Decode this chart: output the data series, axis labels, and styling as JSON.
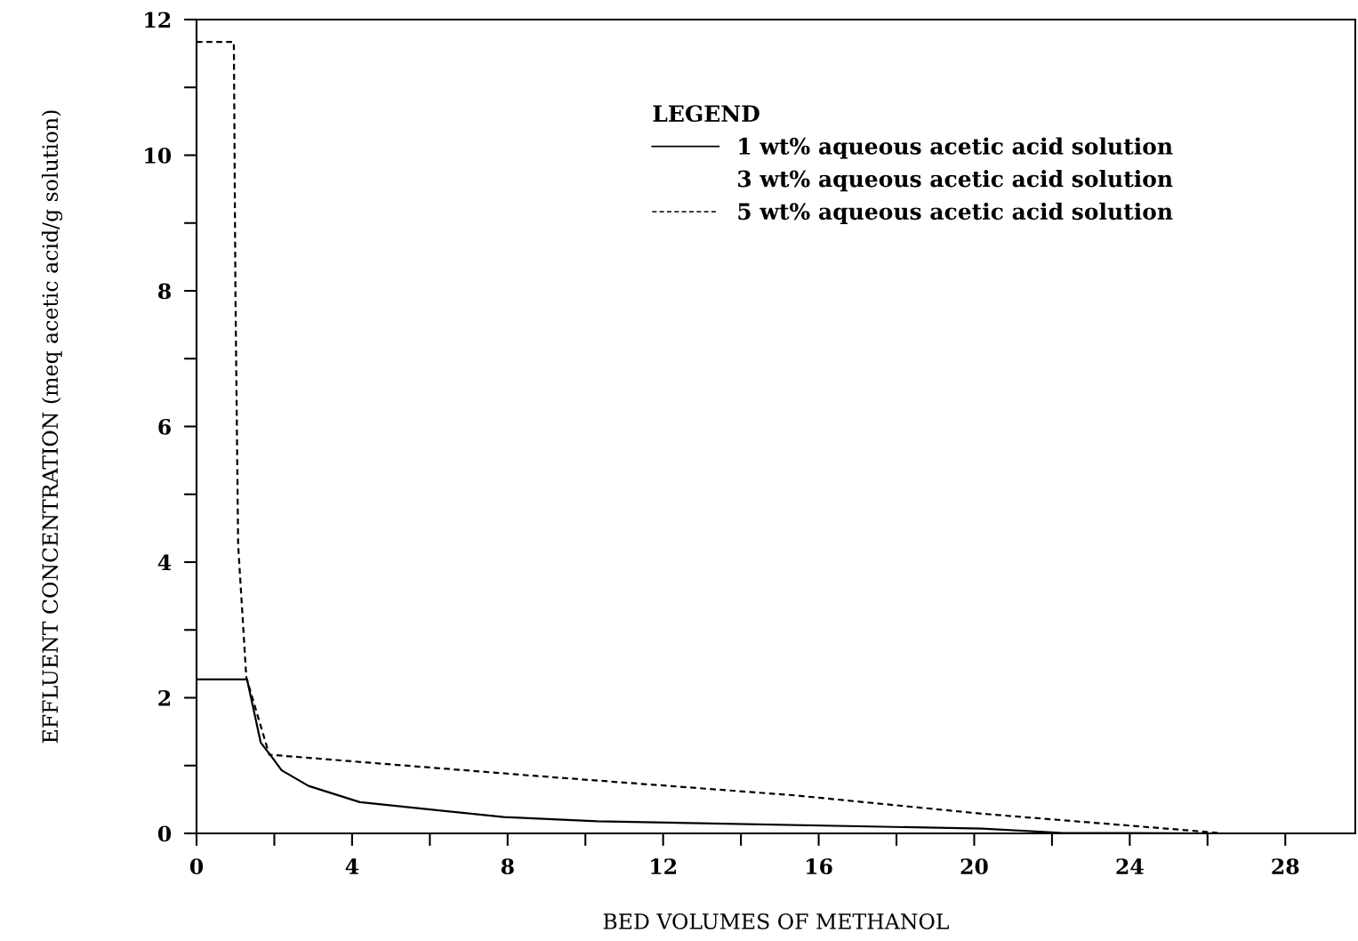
{
  "chart_data": {
    "type": "line",
    "xlabel": "BED VOLUMES OF METHANOL",
    "ylabel": "EFFLUENT CONCENTRATION (meq acetic acid/g solution)",
    "legend_title": "LEGEND",
    "legend": "top right",
    "grid": false,
    "marker": "none",
    "xlim": [
      0,
      29.8
    ],
    "ylim": [
      0,
      12
    ],
    "xticks": [
      0,
      {
        "value": 2,
        "label": null
      },
      4,
      {
        "value": 6,
        "label": null
      },
      8,
      {
        "value": 10,
        "label": null
      },
      12,
      {
        "value": 14,
        "label": null
      },
      16,
      {
        "value": 18,
        "label": null
      },
      20,
      {
        "value": 22,
        "label": null
      },
      24,
      {
        "value": 26,
        "label": null
      },
      28
    ],
    "yticks": [
      0,
      {
        "value": 1,
        "label": null
      },
      2,
      {
        "value": 3,
        "label": null
      },
      4,
      {
        "value": 5,
        "label": null
      },
      6,
      {
        "value": 7,
        "label": null
      },
      8,
      {
        "value": 9,
        "label": null
      },
      10,
      {
        "value": 11,
        "label": null
      },
      12
    ],
    "series": [
      {
        "name": "1 wt% aqueous acetic acid solution",
        "color": "#000000",
        "line_style": "solid",
        "x": [
          0,
          1.3,
          1.65,
          1.92,
          2.19,
          2.88,
          4.2,
          7.9,
          10.3,
          20.2,
          22.2,
          26.1
        ],
        "values": [
          2.27,
          2.27,
          1.34,
          1.14,
          0.93,
          0.7,
          0.46,
          0.24,
          0.18,
          0.07,
          0.01,
          0
        ]
      },
      {
        "name": "3 wt% aqueous acetic acid solution"
      },
      {
        "name": "5 wt% aqueous acetic acid solution",
        "color": "#000000",
        "line_style": "dotted",
        "x": [
          0,
          0.96,
          1.0,
          1.07,
          1.28,
          1.87,
          8.66,
          15.4,
          20.2,
          25.6,
          26.4
        ],
        "values": [
          11.67,
          11.67,
          8.0,
          4.25,
          2.3,
          1.16,
          0.85,
          0.56,
          0.29,
          0.04,
          0
        ]
      }
    ]
  }
}
